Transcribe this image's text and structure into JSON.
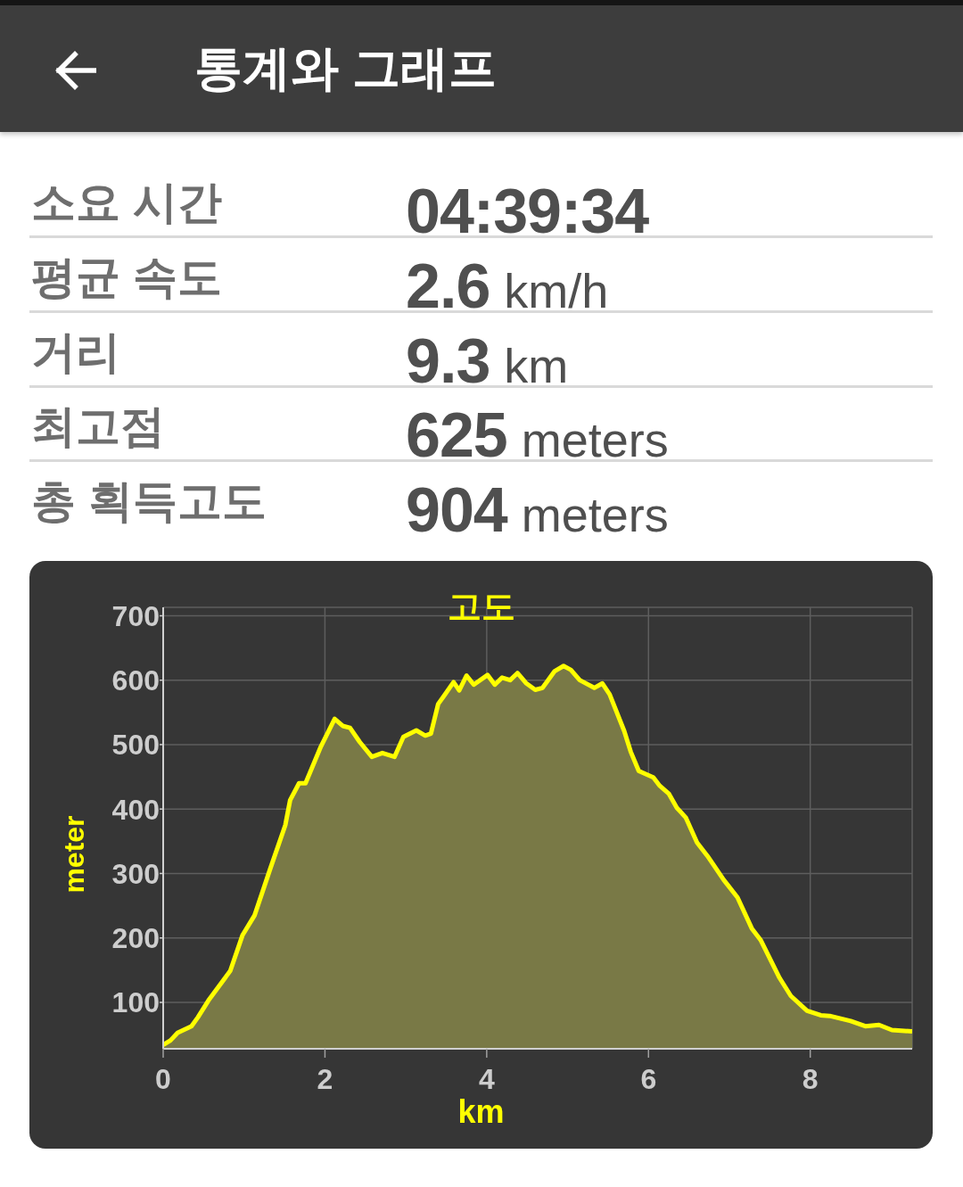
{
  "chart_data": [
    {
      "type": "other",
      "title": "통계와 그래프",
      "annotations": [
        "소요 시간",
        "04:39:34",
        "평균 속도",
        "2.6 km/h",
        "거리",
        "9.3 km",
        "최고점",
        "625 meters",
        "총 획득고도",
        "904 meters"
      ]
    },
    {
      "type": "area",
      "title": "고도",
      "xlabel": "km",
      "ylabel": "meter",
      "color": "#ffff00",
      "x": [
        0,
        0.09,
        0.18,
        0.35,
        0.43,
        0.56,
        0.83,
        0.98,
        1.13,
        1.32,
        1.51,
        1.57,
        1.68,
        1.76,
        1.95,
        2.12,
        2.22,
        2.31,
        2.43,
        2.58,
        2.71,
        2.86,
        2.97,
        3.13,
        3.24,
        3.31,
        3.4,
        3.48,
        3.59,
        3.66,
        3.75,
        3.84,
        4.01,
        4.1,
        4.19,
        4.29,
        4.38,
        4.49,
        4.6,
        4.69,
        4.84,
        4.95,
        5.04,
        5.15,
        5.33,
        5.43,
        5.52,
        5.7,
        5.78,
        5.88,
        6.06,
        6.14,
        6.25,
        6.35,
        6.46,
        6.6,
        6.73,
        6.93,
        7.1,
        7.28,
        7.39,
        7.62,
        7.76,
        7.96,
        8.13,
        8.24,
        8.5,
        8.68,
        8.85,
        9.01,
        9.26
      ],
      "values": [
        34,
        41,
        53,
        63,
        77,
        103,
        149,
        204,
        235,
        306,
        375,
        414,
        440,
        440,
        497,
        540,
        529,
        526,
        504,
        481,
        487,
        481,
        512,
        522,
        514,
        517,
        563,
        577,
        597,
        584,
        607,
        593,
        608,
        593,
        604,
        600,
        611,
        595,
        585,
        588,
        614,
        622,
        616,
        600,
        588,
        595,
        578,
        521,
        489,
        459,
        449,
        436,
        424,
        402,
        387,
        348,
        327,
        290,
        263,
        214,
        196,
        138,
        110,
        87,
        80,
        79,
        71,
        63,
        65,
        57,
        55
      ],
      "xlim": [
        0,
        9.26
      ],
      "ylim": [
        28,
        713
      ],
      "xticks": [
        0,
        2,
        4,
        6,
        8
      ],
      "yticks": [
        100,
        200,
        300,
        400,
        500,
        600,
        700
      ],
      "grid": true
    }
  ]
}
